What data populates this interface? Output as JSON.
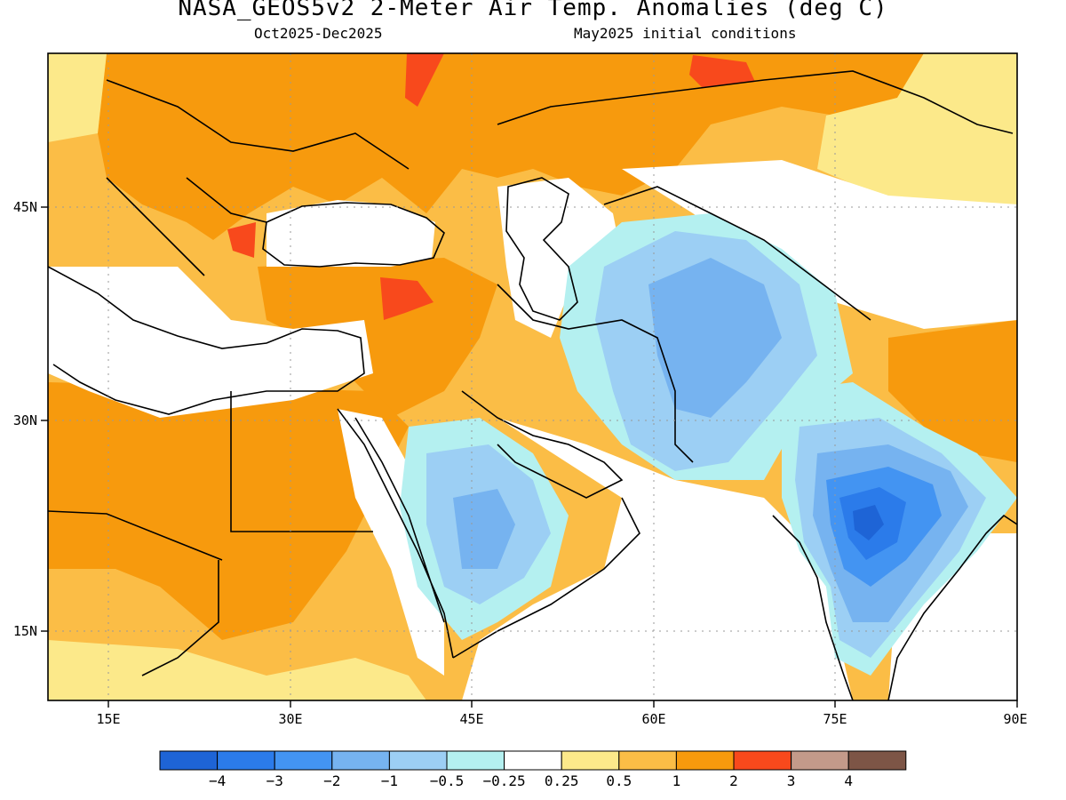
{
  "map": {
    "title": "NASA_GEOS5v2 2-Meter Air Temp. Anomalies (deg C)",
    "period": "Oct2025-Dec2025",
    "initial_conditions": "May2025 initial conditions",
    "lon_ticks": [
      "15E",
      "30E",
      "45E",
      "60E",
      "75E",
      "90E"
    ],
    "lat_ticks": [
      "45N",
      "30N",
      "15N"
    ],
    "lon_range": [
      10,
      90
    ],
    "lat_range": [
      10,
      55
    ],
    "colorbar": {
      "colors": [
        "#1e64d6",
        "#2b7bea",
        "#4394f2",
        "#76b3f0",
        "#9ccff4",
        "#b4f0f0",
        "#ffffff",
        "#fce98a",
        "#fbbd46",
        "#f79a0d",
        "#f8491c",
        "#c39a8a",
        "#7d5546"
      ],
      "labels": [
        "-4",
        "-3",
        "-2",
        "-1",
        "-0.5",
        "-0.25",
        "0.25",
        "0.5",
        "1",
        "2",
        "3",
        "4"
      ]
    }
  }
}
